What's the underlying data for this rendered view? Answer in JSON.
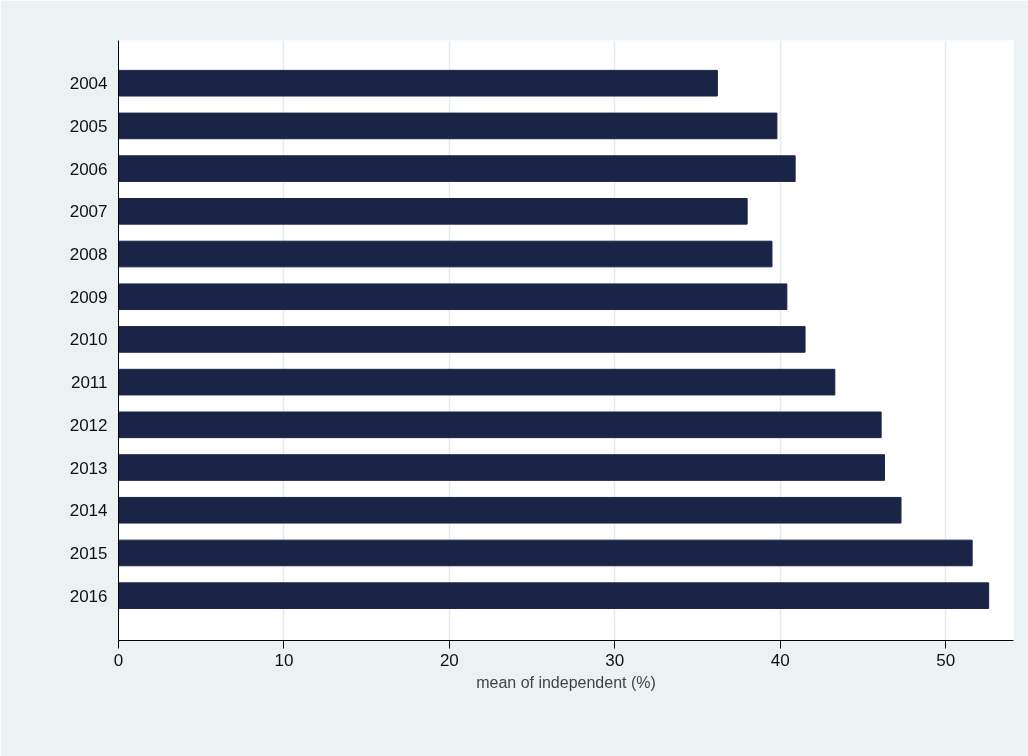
{
  "chart_data": {
    "type": "bar",
    "orientation": "horizontal",
    "xlabel": "mean of independent (%)",
    "categories": [
      "2004",
      "2005",
      "2006",
      "2007",
      "2008",
      "2009",
      "2010",
      "2011",
      "2012",
      "2013",
      "2014",
      "2015",
      "2016"
    ],
    "values": [
      36.2,
      39.8,
      40.9,
      38.0,
      39.5,
      40.4,
      41.5,
      43.3,
      46.1,
      46.3,
      47.3,
      51.6,
      52.6
    ],
    "color": "#1a2447",
    "xlim": [
      0,
      54.1
    ],
    "xticks": [
      0,
      10,
      20,
      30,
      40,
      50
    ],
    "grid": "x"
  }
}
